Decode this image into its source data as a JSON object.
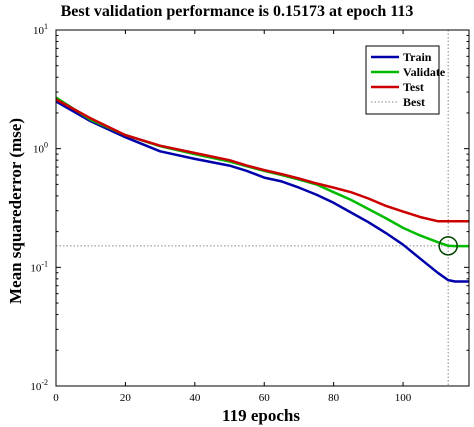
{
  "chart_data": {
    "type": "line",
    "title": "Best validation performance is 0.15173 at epoch 113",
    "xlabel": "119 epochs",
    "ylabel": "Mean squarederror (mse)",
    "xlim": [
      0,
      119
    ],
    "ylim": [
      0.01,
      10
    ],
    "yscale": "log",
    "x_ticks": [
      0,
      20,
      40,
      60,
      80,
      100
    ],
    "y_ticks": [
      {
        "value": 0.01,
        "base": "10",
        "exp": "-2"
      },
      {
        "value": 0.1,
        "base": "10",
        "exp": "-1"
      },
      {
        "value": 1,
        "base": "10",
        "exp": "0"
      },
      {
        "value": 10,
        "base": "10",
        "exp": "1"
      }
    ],
    "grid": false,
    "legend_position": "top-right",
    "series": [
      {
        "name": "Train",
        "color": "#0000aa",
        "x": [
          0,
          10,
          20,
          30,
          40,
          50,
          55,
          60,
          65,
          70,
          75,
          80,
          85,
          90,
          95,
          100,
          105,
          110,
          113,
          115,
          119
        ],
        "y": [
          2.5,
          1.7,
          1.25,
          0.95,
          0.82,
          0.72,
          0.65,
          0.57,
          0.53,
          0.47,
          0.41,
          0.35,
          0.29,
          0.24,
          0.195,
          0.155,
          0.118,
          0.09,
          0.078,
          0.076,
          0.076
        ]
      },
      {
        "name": "Validate",
        "color": "#00bb00",
        "x": [
          0,
          10,
          20,
          30,
          40,
          50,
          55,
          60,
          65,
          70,
          75,
          80,
          85,
          90,
          95,
          100,
          105,
          110,
          113,
          115,
          119
        ],
        "y": [
          2.7,
          1.75,
          1.3,
          1.05,
          0.9,
          0.78,
          0.71,
          0.65,
          0.6,
          0.55,
          0.5,
          0.43,
          0.37,
          0.31,
          0.26,
          0.215,
          0.185,
          0.163,
          0.152,
          0.151,
          0.151
        ]
      },
      {
        "name": "Test",
        "color": "#cc0000",
        "x": [
          0,
          10,
          20,
          30,
          40,
          50,
          55,
          60,
          65,
          70,
          75,
          80,
          85,
          90,
          95,
          100,
          105,
          110,
          113,
          115,
          119
        ],
        "y": [
          2.6,
          1.8,
          1.3,
          1.06,
          0.92,
          0.8,
          0.72,
          0.66,
          0.61,
          0.56,
          0.51,
          0.47,
          0.43,
          0.38,
          0.33,
          0.295,
          0.265,
          0.245,
          0.245,
          0.245,
          0.245
        ]
      }
    ],
    "best": {
      "name": "Best",
      "epoch": 113,
      "value": 0.15173,
      "color": "#888888"
    },
    "colors": {
      "axis": "#000000",
      "background": "#ffffff"
    }
  }
}
